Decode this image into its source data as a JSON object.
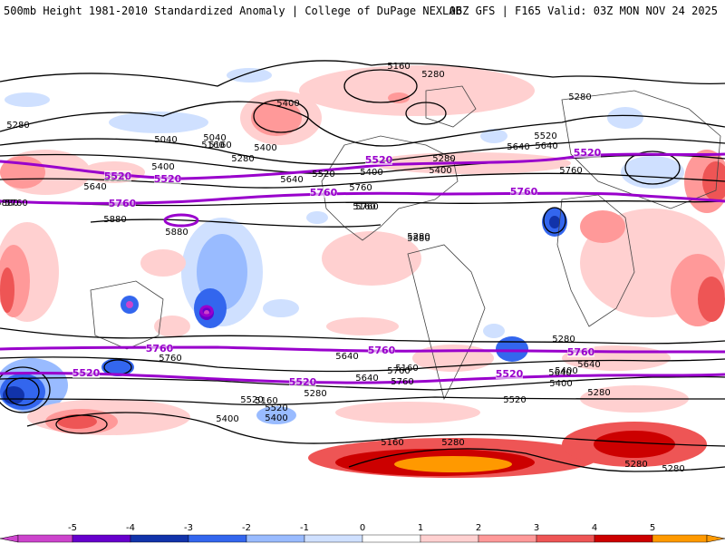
{
  "header": {
    "left": "500mb Height 1981-2010 Standardized Anomaly | College of DuPage NEXLAB",
    "right": "06Z GFS | F165 Valid: 03Z MON NOV 24 2025"
  },
  "colorbar": {
    "ticks": [
      "-5",
      "-4",
      "-3",
      "-2",
      "-1",
      "0",
      "1",
      "2",
      "3",
      "4",
      "5"
    ],
    "colors": [
      "#cc44cc",
      "#6600cc",
      "#1133aa",
      "#3366ee",
      "#99bbff",
      "#cfe0ff",
      "#ffffff",
      "#ffd0d0",
      "#ff9999",
      "#ee5555",
      "#cc0000",
      "#ff9900"
    ]
  },
  "contours": {
    "black_labels": [
      "5160",
      "5280",
      "5400",
      "5040",
      "5160",
      "5280",
      "5400",
      "5520",
      "5640",
      "5760",
      "5880",
      "5880",
      "5280",
      "5280",
      "5400",
      "5520",
      "5640",
      "5760",
      "5160",
      "5280",
      "5640",
      "5400",
      "5760",
      "5880",
      "5280",
      "5160",
      "5040",
      "5400",
      "5520",
      "5640",
      "5760",
      "5880",
      "5160",
      "5280",
      "5400",
      "5520",
      "5640",
      "5760",
      "5760",
      "5640",
      "5520",
      "5400",
      "5280",
      "5160",
      "5280",
      "5520",
      "5640",
      "5400",
      "5280",
      "5280",
      "5160",
      "5280",
      "5640",
      "5400",
      "5760"
    ],
    "purple_labels": [
      "5520",
      "5760",
      "5520",
      "5520",
      "5760",
      "5760",
      "5520",
      "5760",
      "5760",
      "5760",
      "5520",
      "5520",
      "5520"
    ]
  }
}
